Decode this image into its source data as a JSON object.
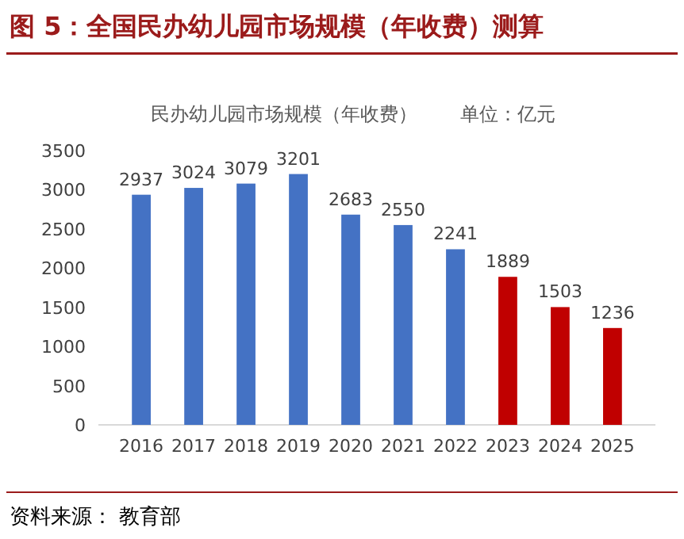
{
  "chart_data": {
    "type": "bar",
    "title": "图 5：全国民办幼儿园市场规模（年收费）测算",
    "subtitle": "民办幼儿园市场规模（年收费）",
    "annotations": [
      "单位：亿元",
      "资料来源： 教育部"
    ],
    "categories": [
      "2016",
      "2017",
      "2018",
      "2019",
      "2020",
      "2021",
      "2022",
      "2023",
      "2024",
      "2025"
    ],
    "values": [
      2937,
      3024,
      3079,
      3201,
      2683,
      2550,
      2241,
      1889,
      1503,
      1236
    ],
    "colors": [
      "#4472c4",
      "#4472c4",
      "#4472c4",
      "#4472c4",
      "#4472c4",
      "#4472c4",
      "#4472c4",
      "#c00000",
      "#c00000",
      "#c00000"
    ],
    "ylim": [
      0,
      3500
    ],
    "yticks": [
      0,
      500,
      1000,
      1500,
      2000,
      2500,
      3000,
      3500
    ],
    "data_labels": true
  }
}
